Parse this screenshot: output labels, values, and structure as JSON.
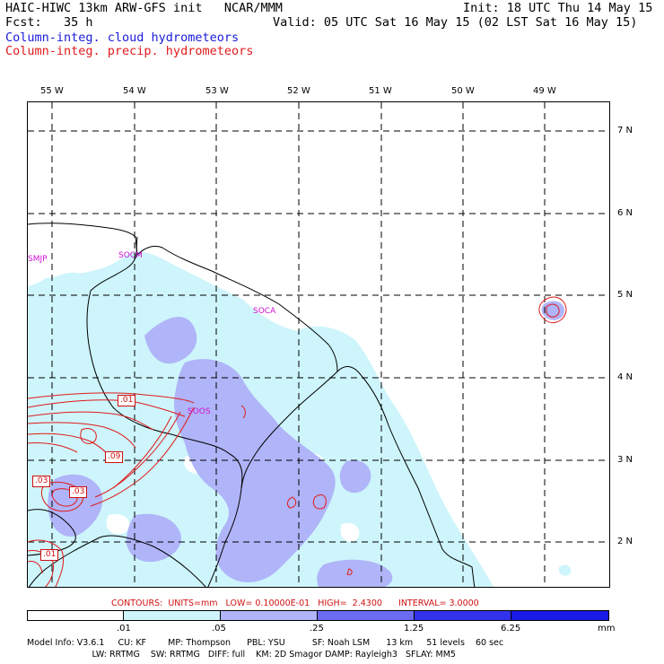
{
  "header": {
    "line1_left": "HAIC-HIWC 13km ARW-GFS init   NCAR/MMM",
    "line2_left": "Fcst:   35 h",
    "line1_right": "Init: 18 UTC Thu 14 May 15",
    "line2_right": "Valid: 05 UTC Sat 16 May 15 (02 LST Sat 16 May 15)",
    "field1": "Column-integ. cloud hydrometeors",
    "field2": "Column-integ. precip. hydrometeors"
  },
  "longitudes": [
    "55 W",
    "54 W",
    "53 W",
    "52 W",
    "51 W",
    "50 W",
    "49 W"
  ],
  "latitudes": [
    "7 N",
    "6 N",
    "5 N",
    "4 N",
    "3 N",
    "2 N"
  ],
  "stations": [
    "SMJP",
    "SOCM",
    "SOCA",
    "SOOS"
  ],
  "contour_labels": [
    ".01",
    ".09",
    ".03",
    ".03",
    ".01"
  ],
  "contours_line": "CONTOURS:  UNITS=mm   LOW= 0.10000E-01   HIGH=  2.4300      INTERVAL= 3.0000",
  "colorbar": {
    "labels": [
      ".01",
      ".05",
      ".25",
      "1.25",
      "6.25",
      "mm"
    ],
    "colors": [
      "#ffffff",
      "#cdf5fb",
      "#b0b4f8",
      "#6b6bf2",
      "#1a1ae6"
    ]
  },
  "model_info": {
    "line1": "Model Info: V3.6.1     CU: KF        MP: Thompson      PBL: YSU          SF: Noah LSM      13 km     51 levels    60 sec",
    "line2": "                        LW: RRTMG    SW: RRTMG   DIFF: full    KM: 2D Smagor DAMP: Rayleigh3   SFLAY: MM5"
  },
  "colors": {
    "cloud_text": "#1a1adb",
    "precip_text": "#e01a1a",
    "station": "#d010d0"
  }
}
